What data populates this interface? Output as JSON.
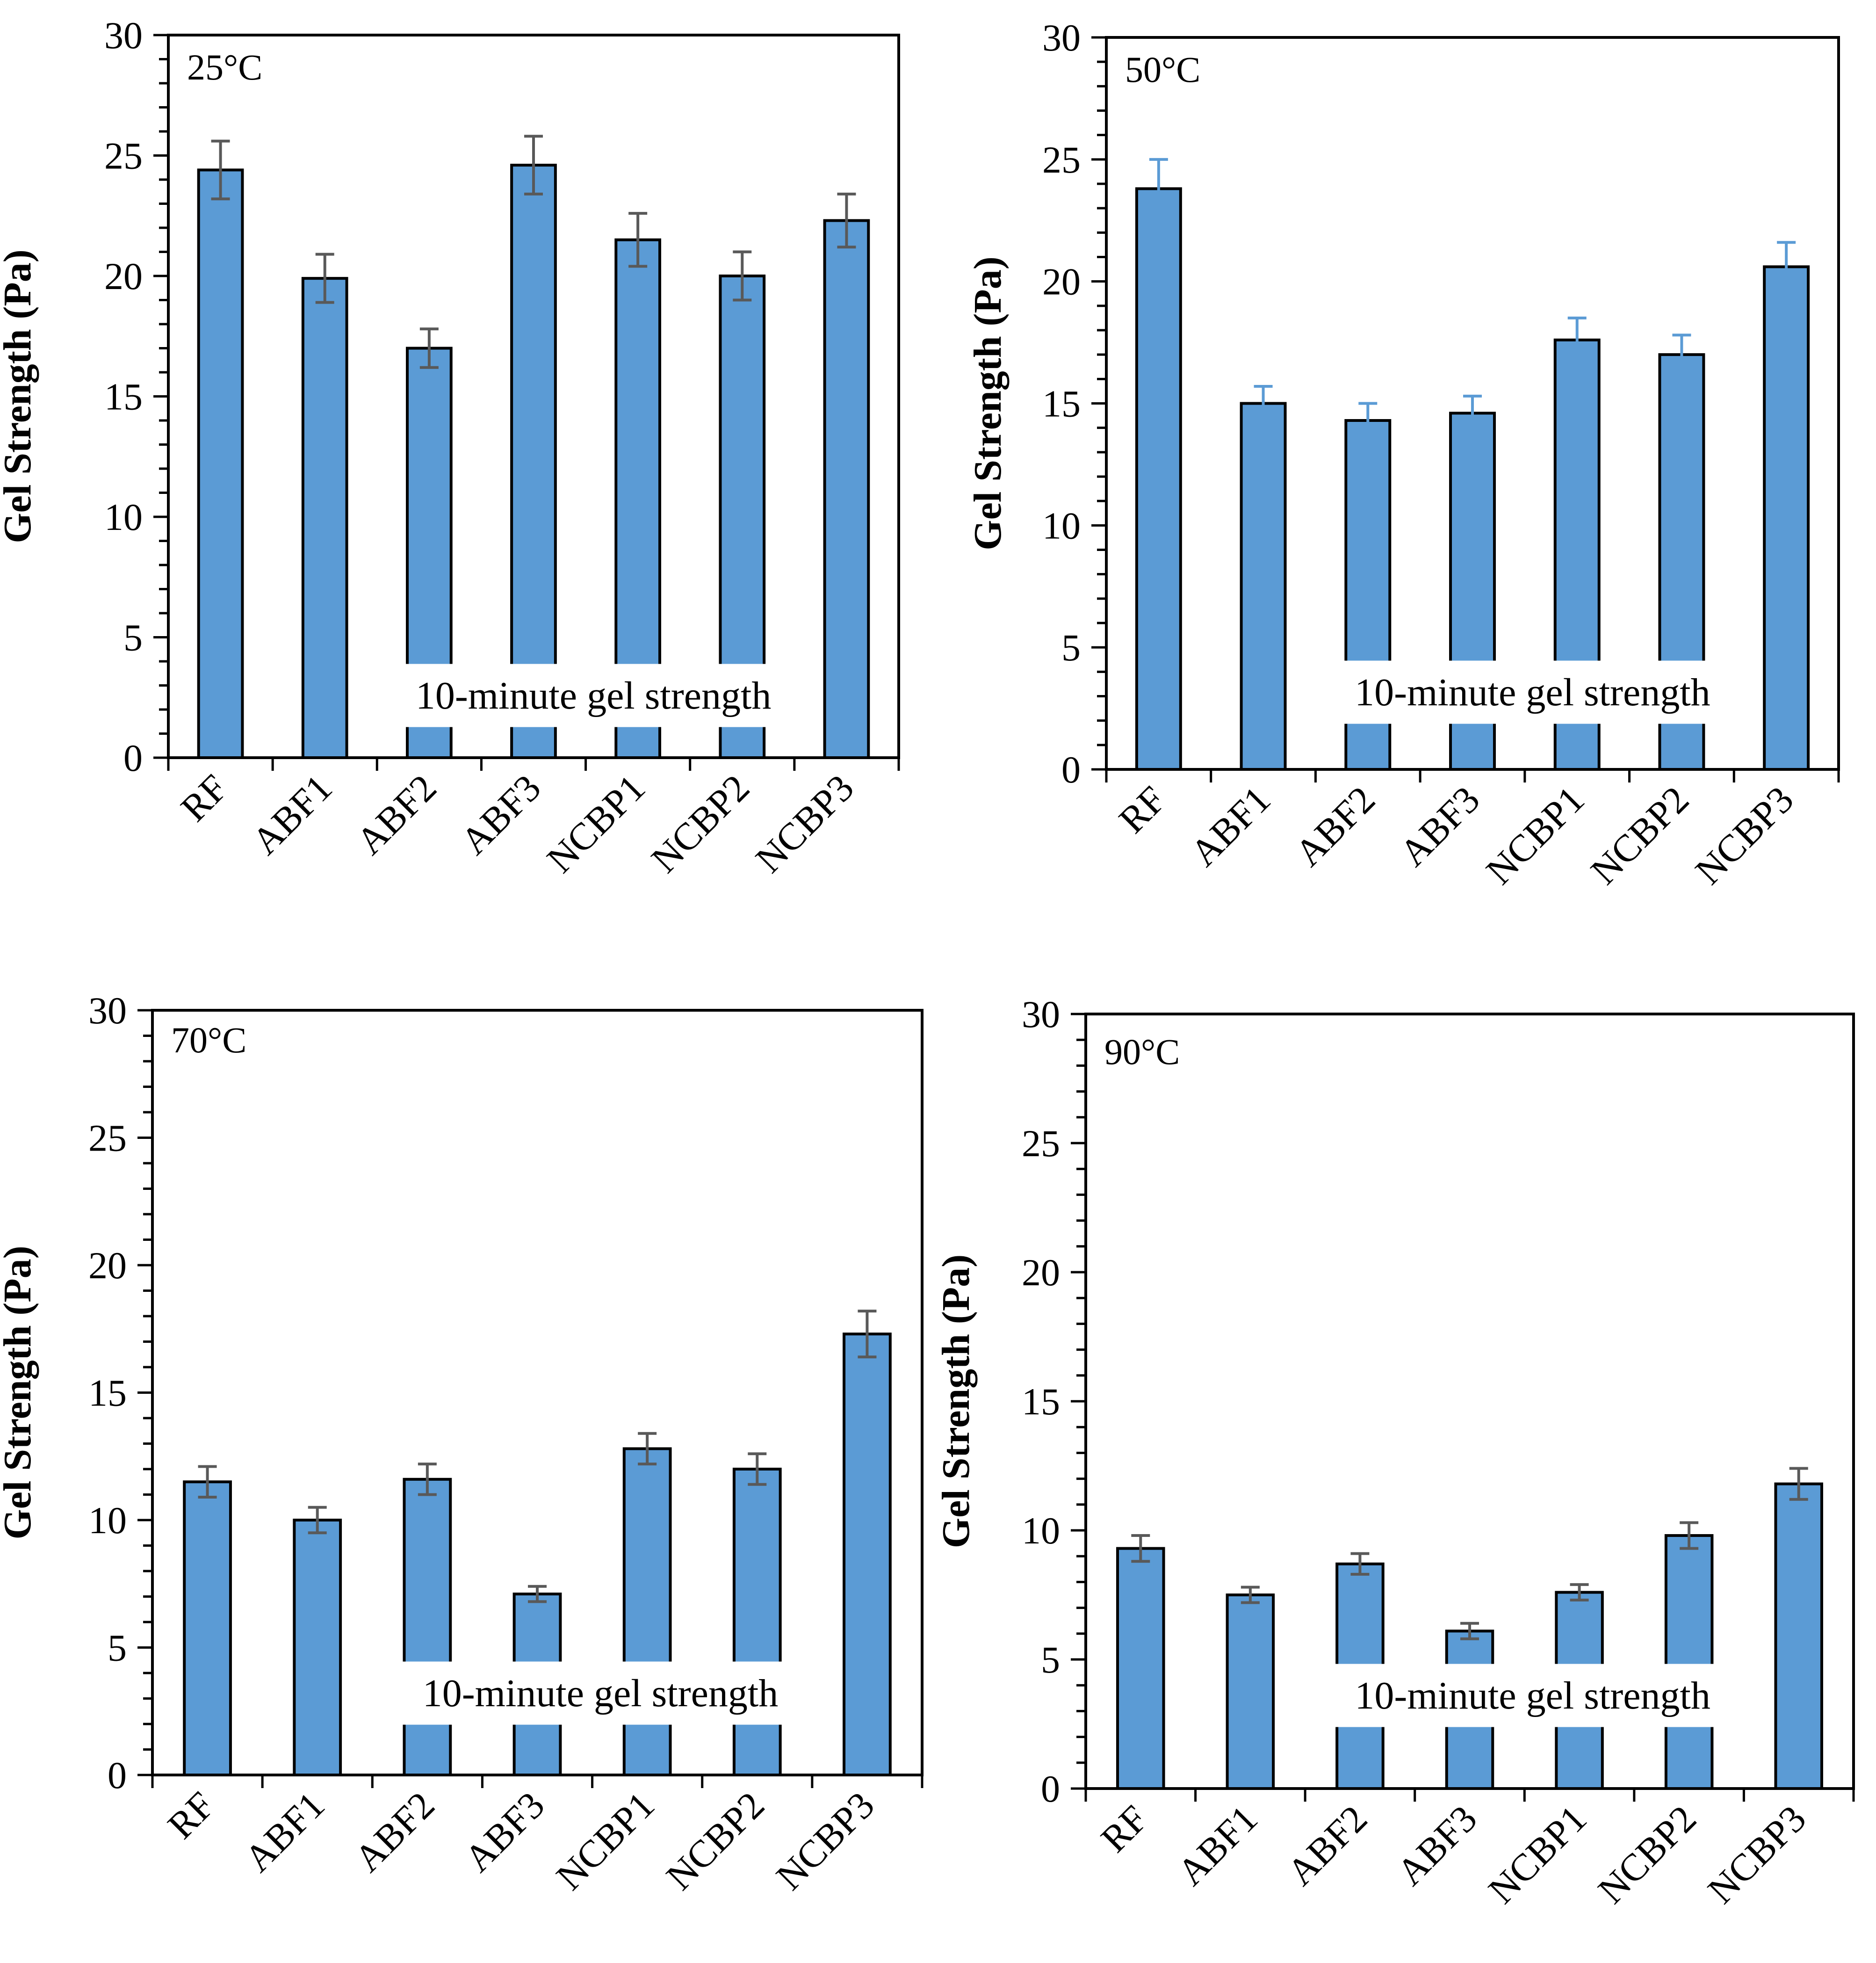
{
  "chart_data": [
    {
      "type": "bar",
      "panel_label": "25°C",
      "annotation": "10-minute gel strength",
      "ylabel": "Gel Strength (Pa)",
      "xlabel": "",
      "categories": [
        "RF",
        "ABF1",
        "ABF2",
        "ABF3",
        "NCBP1",
        "NCBP2",
        "NCBP3"
      ],
      "values": [
        24.4,
        19.9,
        17.0,
        24.6,
        21.5,
        20.0,
        22.3
      ],
      "errors": [
        1.2,
        1.0,
        0.8,
        1.2,
        1.1,
        1.0,
        1.1
      ],
      "ylim": [
        0,
        30
      ],
      "yticks": [
        0,
        5,
        10,
        15,
        20,
        25,
        30
      ],
      "error_bar_color": "#595959"
    },
    {
      "type": "bar",
      "panel_label": "50°C",
      "annotation": "10-minute gel strength",
      "ylabel": "Gel Strength (Pa)",
      "xlabel": "",
      "categories": [
        "RF",
        "ABF1",
        "ABF2",
        "ABF3",
        "NCBP1",
        "NCBP2",
        "NCBP3"
      ],
      "values": [
        23.8,
        15.0,
        14.3,
        14.6,
        17.6,
        17.0,
        20.6
      ],
      "errors": [
        1.2,
        0.7,
        0.7,
        0.7,
        0.9,
        0.8,
        1.0
      ],
      "ylim": [
        0,
        30
      ],
      "yticks": [
        0,
        5,
        10,
        15,
        20,
        25,
        30
      ],
      "error_bar_color": "#5B9BD5"
    },
    {
      "type": "bar",
      "panel_label": "70°C",
      "annotation": "10-minute gel strength",
      "ylabel": "Gel Strength (Pa)",
      "xlabel": "",
      "categories": [
        "RF",
        "ABF1",
        "ABF2",
        "ABF3",
        "NCBP1",
        "NCBP2",
        "NCBP3"
      ],
      "values": [
        11.5,
        10.0,
        11.6,
        7.1,
        12.8,
        12.0,
        17.3
      ],
      "errors": [
        0.6,
        0.5,
        0.6,
        0.3,
        0.6,
        0.6,
        0.9
      ],
      "ylim": [
        0,
        30
      ],
      "yticks": [
        0,
        5,
        10,
        15,
        20,
        25,
        30
      ],
      "error_bar_color": "#595959"
    },
    {
      "type": "bar",
      "panel_label": "90°C",
      "annotation": "10-minute gel strength",
      "ylabel": "Gel Strength (Pa)",
      "xlabel": "",
      "categories": [
        "RF",
        "ABF1",
        "ABF2",
        "ABF3",
        "NCBP1",
        "NCBP2",
        "NCBP3"
      ],
      "values": [
        9.3,
        7.5,
        8.7,
        6.1,
        7.6,
        9.8,
        11.8
      ],
      "errors": [
        0.5,
        0.3,
        0.4,
        0.3,
        0.3,
        0.5,
        0.6
      ],
      "ylim": [
        0,
        30
      ],
      "yticks": [
        0,
        5,
        10,
        15,
        20,
        25,
        30
      ],
      "error_bar_color": "#595959"
    }
  ],
  "colors": {
    "bar_fill": "#5B9BD5",
    "bar_stroke": "#000000",
    "axis": "#000000",
    "background": "#FFFFFF"
  }
}
